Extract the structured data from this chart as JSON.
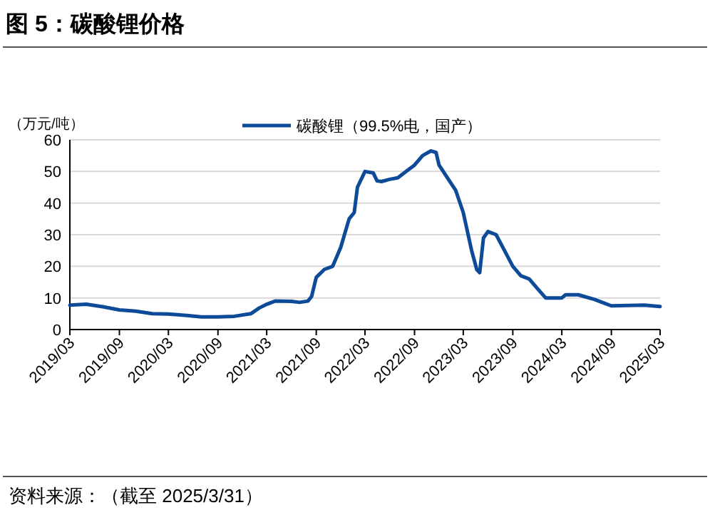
{
  "chart_data": {
    "type": "line",
    "title": "图 5：碳酸锂价格",
    "ylabel": "（万元/吨）",
    "annotations": [
      "资料来源：（截至 2025/3/31）"
    ],
    "x": [
      "2019-03",
      "2019-05",
      "2019-07",
      "2019-09",
      "2019-11",
      "2020-01",
      "2020-03",
      "2020-05",
      "2020-07",
      "2020-09",
      "2020-11",
      "2021-01",
      "2021-02",
      "2021-03",
      "2021-04",
      "2021-06",
      "2021-07",
      "2021-08",
      "2021-08-15",
      "2021-09",
      "2021-10",
      "2021-11",
      "2021-12",
      "2022-01",
      "2022-01-20",
      "2022-02",
      "2022-03",
      "2022-04",
      "2022-04-15",
      "2022-05",
      "2022-06",
      "2022-07",
      "2022-08",
      "2022-09",
      "2022-10",
      "2022-11",
      "2022-11-20",
      "2022-12",
      "2023-01",
      "2023-02",
      "2023-03",
      "2023-04",
      "2023-04-20",
      "2023-05",
      "2023-05-15",
      "2023-06",
      "2023-07",
      "2023-08",
      "2023-09",
      "2023-10",
      "2023-11",
      "2023-12",
      "2024-01",
      "2024-03",
      "2024-03-15",
      "2024-05",
      "2024-07",
      "2024-08",
      "2024-09",
      "2024-11",
      "2025-01",
      "2025-03"
    ],
    "series": [
      {
        "name": "碳酸锂（99.5%电，国产）",
        "color": "#0d4a98",
        "values": [
          7.7,
          8.0,
          7.2,
          6.2,
          5.8,
          5.0,
          4.9,
          4.5,
          4.0,
          4.0,
          4.2,
          5.0,
          6.8,
          8.0,
          9.0,
          8.9,
          8.6,
          9.0,
          10.5,
          16.5,
          19.0,
          20.0,
          26,
          35,
          37,
          45,
          50,
          49.5,
          47,
          46.8,
          47.5,
          48,
          50,
          52,
          55,
          56.5,
          56,
          52,
          48,
          44,
          37,
          25,
          19,
          18,
          29,
          31,
          30,
          25,
          20,
          17,
          16,
          13,
          10,
          10,
          11,
          11,
          9.5,
          8.5,
          7.5,
          7.6,
          7.7,
          7.3
        ]
      }
    ],
    "xlim": [
      "2019-03",
      "2025-03"
    ],
    "xticks": [
      {
        "value": "2019-03",
        "label": "2019/03"
      },
      {
        "value": "2019-09",
        "label": "2019/09"
      },
      {
        "value": "2020-03",
        "label": "2020/03"
      },
      {
        "value": "2020-09",
        "label": "2020/09"
      },
      {
        "value": "2021-03",
        "label": "2021/03"
      },
      {
        "value": "2021-09",
        "label": "2021/09"
      },
      {
        "value": "2022-03",
        "label": "2022/03"
      },
      {
        "value": "2022-09",
        "label": "2022/09"
      },
      {
        "value": "2023-03",
        "label": "2023/03"
      },
      {
        "value": "2023-09",
        "label": "2023/09"
      },
      {
        "value": "2024-03",
        "label": "2024/03"
      },
      {
        "value": "2024-09",
        "label": "2024/09"
      },
      {
        "value": "2025-03",
        "label": "2025/03"
      }
    ],
    "ylim": [
      0,
      60
    ],
    "yticks": [
      0,
      10,
      20,
      30,
      40,
      50,
      60
    ],
    "grid": "y",
    "legend": "top",
    "marker": "none",
    "line_style": "solid"
  }
}
